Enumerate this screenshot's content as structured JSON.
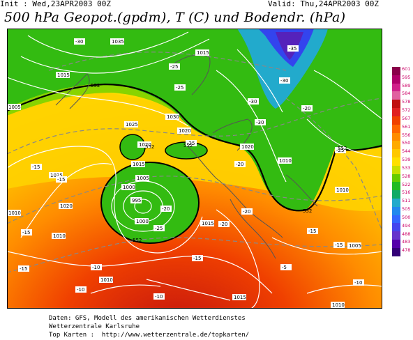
{
  "header": {
    "init": "Init : Wed,23APR2003 00Z",
    "valid": "Valid: Thu,24APR2003 00Z",
    "title": "500 hPa Geopot.(gpdm), T (C) und Bodendr. (hPa)"
  },
  "colorbar": {
    "ticks": [
      "601",
      "595",
      "589",
      "584",
      "578",
      "572",
      "567",
      "561",
      "556",
      "550",
      "544",
      "539",
      "533",
      "528",
      "522",
      "516",
      "511",
      "505",
      "500",
      "494",
      "488",
      "483",
      "478"
    ],
    "colors": [
      "#8a004a",
      "#b0006a",
      "#d0208a",
      "#e060a0",
      "#c01010",
      "#e02020",
      "#f04000",
      "#ff6600",
      "#ff8c00",
      "#ffaa00",
      "#ffc800",
      "#ffe000",
      "#c8e000",
      "#66cc00",
      "#22bb22",
      "#11aa66",
      "#22aacc",
      "#2288ee",
      "#3366ff",
      "#4444ee",
      "#6633cc",
      "#5500aa",
      "#330077"
    ]
  },
  "map": {
    "isobar_labels": [
      "1035",
      "1030",
      "1025",
      "1025",
      "1020",
      "1020",
      "1020",
      "1020",
      "1015",
      "1015",
      "1015",
      "1015",
      "1010",
      "1010",
      "1010",
      "1010",
      "1010",
      "1005",
      "1005",
      "1005",
      "1000",
      "995",
      "1000",
      "1015",
      "1010"
    ],
    "temp_labels": [
      "-30",
      "-25",
      "-25",
      "-30",
      "-35",
      "-30",
      "-20",
      "-25",
      "-20",
      "-15",
      "-15",
      "-20",
      "-20",
      "-25",
      "-15",
      "-10",
      "-15",
      "-20",
      "-25",
      "-30",
      "-15",
      "-10",
      "-15",
      "-5",
      "-10",
      "-15",
      "-10"
    ],
    "geopot_labels": [
      "552",
      "552",
      "552",
      "552",
      "552",
      "552"
    ]
  },
  "footer": {
    "line1": "Daten: GFS, Modell des amerikanischen Wetterdienstes",
    "line2": "Wetterzentrale Karlsruhe",
    "line3": "Top Karten :  http://www.wetterzentrale.de/topkarten/"
  }
}
